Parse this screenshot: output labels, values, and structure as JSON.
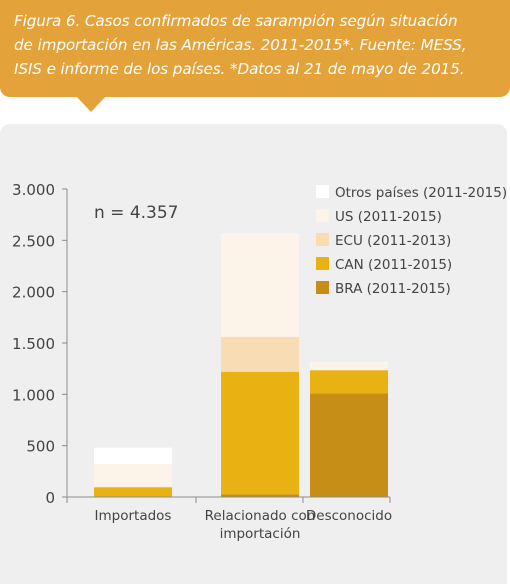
{
  "caption": {
    "line1": "Figura 6. Casos confirmados de sarampión según situación",
    "line2": "de importación en las Américas. 2011-2015*. Fuente: MESS,",
    "line3": "ISIS e informe de los países. *Datos al 21 de mayo de 2015."
  },
  "chart_data": {
    "type": "bar",
    "stacked": true,
    "categories": [
      "Importados",
      "Relacionado con importación",
      "Desconocido"
    ],
    "category_lines": [
      [
        "Importados"
      ],
      [
        "Relacionado con",
        "importación"
      ],
      [
        "Desconocido"
      ]
    ],
    "series": [
      {
        "name": "BRA (2011-2015)",
        "color": "#c68e17",
        "values": [
          5,
          25,
          1010
        ]
      },
      {
        "name": "CAN (2011-2015)",
        "color": "#e8b212",
        "values": [
          90,
          1195,
          225
        ]
      },
      {
        "name": "ECU (2011-2013)",
        "color": "#f8ddb4",
        "values": [
          5,
          340,
          0
        ]
      },
      {
        "name": "US (2011-2015)",
        "color": "#fcf4e8",
        "values": [
          220,
          1000,
          75
        ]
      },
      {
        "name": "Otros países (2011-2015)",
        "color": "#ffffff",
        "values": [
          160,
          5,
          2
        ]
      }
    ],
    "legend_order": [
      "Otros países (2011-2015)",
      "US (2011-2015)",
      "ECU (2011-2013)",
      "CAN (2011-2015)",
      "BRA (2011-2015)"
    ],
    "legend_position": "top-right",
    "ylim": [
      0,
      3000
    ],
    "yticks": [
      0,
      500,
      1000,
      1500,
      2000,
      2500,
      3000
    ],
    "ytick_labels": [
      "0",
      "500",
      "1.000",
      "1.500",
      "2.000",
      "2.500",
      "3.000"
    ],
    "annotation": "n = 4.357",
    "grid": false,
    "xlabel": "",
    "ylabel": "",
    "title": ""
  },
  "colors": {
    "caption_bg": "#e4a23a",
    "panel_bg": "#efefef",
    "axis": "#8c8c8c",
    "text": "#444444"
  }
}
